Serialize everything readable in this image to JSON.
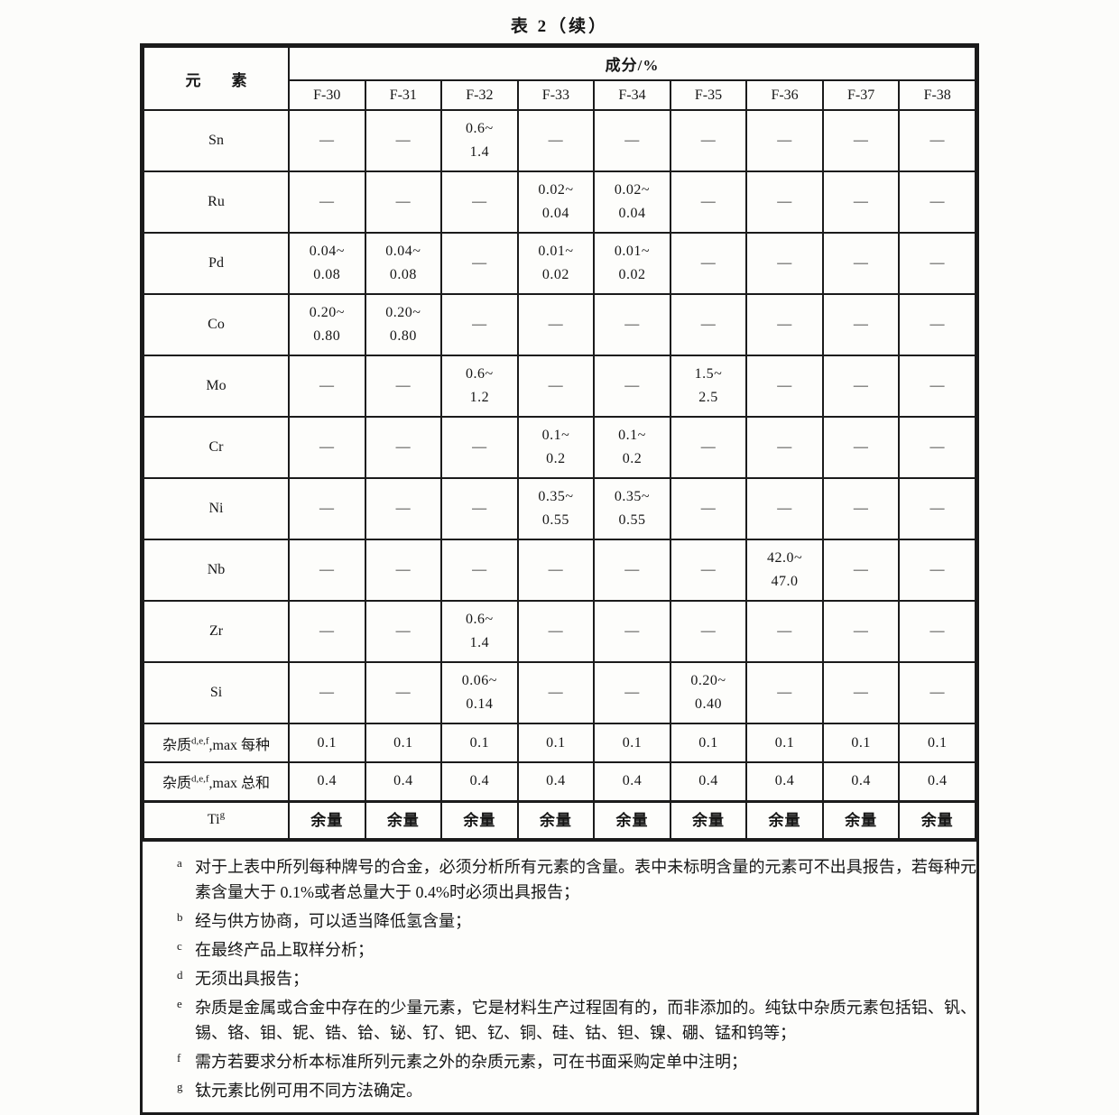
{
  "title": "表 2（续）",
  "table": {
    "element_header": "元　　素",
    "composition_header": "成分/%",
    "grades": [
      "F-30",
      "F-31",
      "F-32",
      "F-33",
      "F-34",
      "F-35",
      "F-36",
      "F-37",
      "F-38"
    ],
    "rows": [
      {
        "element": "Sn",
        "values": [
          "—",
          "—",
          "0.6~\n1.4",
          "—",
          "—",
          "—",
          "—",
          "—",
          "—"
        ]
      },
      {
        "element": "Ru",
        "values": [
          "—",
          "—",
          "—",
          "0.02~\n0.04",
          "0.02~\n0.04",
          "—",
          "—",
          "—",
          "—"
        ]
      },
      {
        "element": "Pd",
        "values": [
          "0.04~\n0.08",
          "0.04~\n0.08",
          "—",
          "0.01~\n0.02",
          "0.01~\n0.02",
          "—",
          "—",
          "—",
          "—"
        ]
      },
      {
        "element": "Co",
        "values": [
          "0.20~\n0.80",
          "0.20~\n0.80",
          "—",
          "—",
          "—",
          "—",
          "—",
          "—",
          "—"
        ]
      },
      {
        "element": "Mo",
        "values": [
          "—",
          "—",
          "0.6~\n1.2",
          "—",
          "—",
          "1.5~\n2.5",
          "—",
          "—",
          "—"
        ]
      },
      {
        "element": "Cr",
        "values": [
          "—",
          "—",
          "—",
          "0.1~\n0.2",
          "0.1~\n0.2",
          "—",
          "—",
          "—",
          "—"
        ]
      },
      {
        "element": "Ni",
        "values": [
          "—",
          "—",
          "—",
          "0.35~\n0.55",
          "0.35~\n0.55",
          "—",
          "—",
          "—",
          "—"
        ]
      },
      {
        "element": "Nb",
        "values": [
          "—",
          "—",
          "—",
          "—",
          "—",
          "—",
          "42.0~\n47.0",
          "—",
          "—"
        ]
      },
      {
        "element": "Zr",
        "values": [
          "—",
          "—",
          "0.6~\n1.4",
          "—",
          "—",
          "—",
          "—",
          "—",
          "—"
        ]
      },
      {
        "element": "Si",
        "values": [
          "—",
          "—",
          "0.06~\n0.14",
          "—",
          "—",
          "0.20~\n0.40",
          "—",
          "—",
          "—"
        ]
      }
    ],
    "impurity_rows": [
      {
        "label_prefix": "杂质",
        "label_sup": "d,e,f",
        "label_suffix": ",max 每种",
        "values": [
          "0.1",
          "0.1",
          "0.1",
          "0.1",
          "0.1",
          "0.1",
          "0.1",
          "0.1",
          "0.1"
        ]
      },
      {
        "label_prefix": "杂质",
        "label_sup": "d,e,f",
        "label_suffix": ",max 总和",
        "values": [
          "0.4",
          "0.4",
          "0.4",
          "0.4",
          "0.4",
          "0.4",
          "0.4",
          "0.4",
          "0.4"
        ]
      }
    ],
    "ti_row": {
      "label_prefix": "Ti",
      "label_sup": "g",
      "values": [
        "余量",
        "余量",
        "余量",
        "余量",
        "余量",
        "余量",
        "余量",
        "余量",
        "余量"
      ]
    }
  },
  "footnotes": [
    {
      "marker": "a",
      "text": "对于上表中所列每种牌号的合金，必须分析所有元素的含量。表中未标明含量的元素可不出具报告，若每种元素含量大于 0.1%或者总量大于 0.4%时必须出具报告；"
    },
    {
      "marker": "b",
      "text": "经与供方协商，可以适当降低氢含量；"
    },
    {
      "marker": "c",
      "text": "在最终产品上取样分析；"
    },
    {
      "marker": "d",
      "text": "无须出具报告；"
    },
    {
      "marker": "e",
      "text": "杂质是金属或合金中存在的少量元素，它是材料生产过程固有的，而非添加的。纯钛中杂质元素包括铝、钒、锡、铬、钼、铌、锆、铪、铋、钌、钯、钇、铜、硅、钴、钽、镍、硼、锰和钨等；"
    },
    {
      "marker": "f",
      "text": "需方若要求分析本标准所列元素之外的杂质元素，可在书面采购定单中注明；"
    },
    {
      "marker": "g",
      "text": "钛元素比例可用不同方法确定。"
    }
  ]
}
